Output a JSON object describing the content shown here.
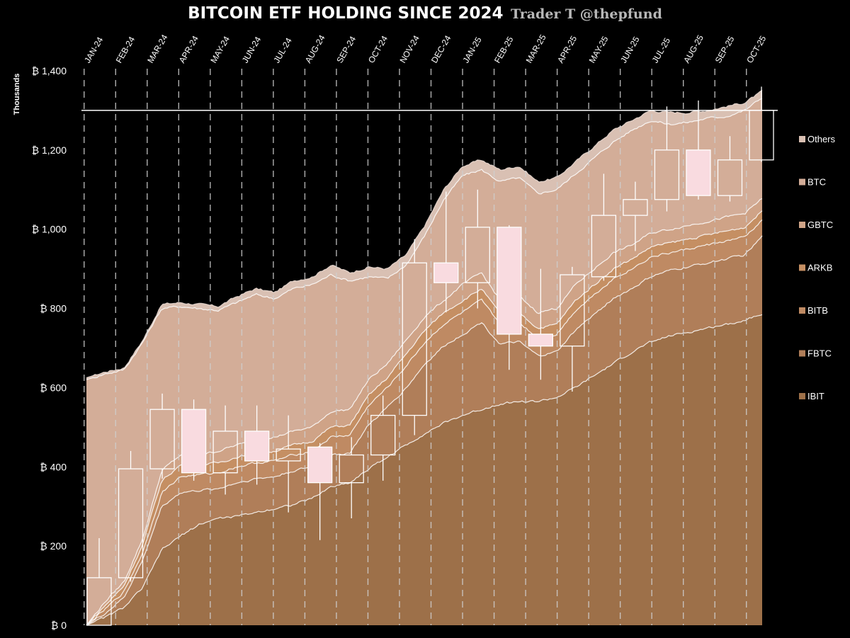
{
  "header": {
    "title": "BITCOIN ETF HOLDING SINCE 2024",
    "credit": "Trader T @thepfund"
  },
  "chart_data": {
    "type": "area",
    "stacked": true,
    "overlay": "candlestick",
    "unit_label": "Thousands",
    "currency_symbol": "₿",
    "ylim": [
      0,
      1400
    ],
    "y_ticks": [
      "₿ 0",
      "₿ 200",
      "₿ 400",
      "₿ 600",
      "₿ 800",
      "₿ 1,000",
      "₿ 1,200",
      "₿ 1,400"
    ],
    "y_tick_values": [
      0,
      200,
      400,
      600,
      800,
      1000,
      1200,
      1400
    ],
    "months": [
      "JAN-24",
      "FEB-24",
      "MAR-24",
      "APR-24",
      "MAY-24",
      "JUN-24",
      "JUL-24",
      "AUG-24",
      "SEP-24",
      "OCT-24",
      "NOV-24",
      "DEC-24",
      "JAN-25",
      "FEB-25",
      "MAR-25",
      "APR-25",
      "MAY-25",
      "JUN-25",
      "JUL-25",
      "AUG-25",
      "SEP-25",
      "OCT-25"
    ],
    "reference_line": 1300,
    "grid": "vertical dashed at month starts",
    "legend_position": "right",
    "series": [
      {
        "name": "Others",
        "color": "#d9c0b3",
        "cumulative": [
          625,
          640,
          650,
          720,
          810,
          815,
          810,
          805,
          830,
          850,
          840,
          870,
          880,
          910,
          890,
          905,
          900,
          935,
          1010,
          1100,
          1160,
          1175,
          1150,
          1160,
          1120,
          1130,
          1170,
          1210,
          1250,
          1275,
          1300,
          1295,
          1295,
          1300,
          1310,
          1320,
          1350
        ]
      },
      {
        "name": "BTC",
        "color": "#d3ad98",
        "cumulative": [
          620,
          635,
          645,
          715,
          800,
          805,
          800,
          795,
          815,
          835,
          825,
          850,
          860,
          885,
          870,
          880,
          875,
          910,
          985,
          1075,
          1135,
          1150,
          1120,
          1130,
          1090,
          1100,
          1140,
          1180,
          1220,
          1250,
          1275,
          1265,
          1270,
          1280,
          1285,
          1300,
          1335
        ]
      },
      {
        "name": "GBTC",
        "color": "#cfa387",
        "cumulative": [
          0,
          60,
          110,
          220,
          390,
          430,
          430,
          440,
          455,
          465,
          475,
          490,
          500,
          540,
          545,
          620,
          660,
          720,
          780,
          820,
          860,
          890,
          820,
          830,
          790,
          800,
          860,
          900,
          940,
          960,
          990,
          1000,
          1010,
          1020,
          1030,
          1040,
          1080
        ]
      },
      {
        "name": "ARKB",
        "color": "#c58f63",
        "cumulative": [
          0,
          50,
          100,
          205,
          365,
          405,
          405,
          410,
          425,
          435,
          440,
          455,
          465,
          500,
          505,
          580,
          625,
          685,
          745,
          790,
          820,
          850,
          785,
          790,
          750,
          760,
          820,
          860,
          900,
          925,
          955,
          965,
          975,
          985,
          995,
          1005,
          1050
        ]
      },
      {
        "name": "BITB",
        "color": "#bf8a63",
        "cumulative": [
          0,
          40,
          85,
          185,
          335,
          375,
          380,
          385,
          400,
          410,
          415,
          430,
          440,
          475,
          480,
          555,
          600,
          655,
          715,
          760,
          790,
          820,
          760,
          765,
          725,
          735,
          795,
          835,
          875,
          900,
          930,
          940,
          950,
          960,
          970,
          980,
          1025
        ]
      },
      {
        "name": "FBTC",
        "color": "#b07e59",
        "cumulative": [
          0,
          30,
          70,
          165,
          300,
          335,
          340,
          345,
          360,
          370,
          375,
          390,
          400,
          430,
          435,
          505,
          550,
          600,
          660,
          705,
          735,
          765,
          710,
          715,
          680,
          690,
          745,
          785,
          825,
          850,
          880,
          895,
          905,
          915,
          925,
          935,
          985
        ]
      },
      {
        "name": "IBIT",
        "color": "#9d7049",
        "cumulative": [
          0,
          20,
          45,
          95,
          190,
          225,
          255,
          270,
          275,
          285,
          295,
          305,
          320,
          350,
          360,
          395,
          425,
          455,
          485,
          510,
          530,
          545,
          560,
          565,
          565,
          575,
          600,
          630,
          660,
          690,
          715,
          730,
          740,
          750,
          760,
          770,
          790
        ]
      }
    ],
    "candles": [
      {
        "month": "JAN-24",
        "open": 0,
        "close": 120,
        "high": 220,
        "low": 0
      },
      {
        "month": "FEB-24",
        "open": 120,
        "close": 395,
        "high": 440,
        "low": 110
      },
      {
        "month": "MAR-24",
        "open": 395,
        "close": 545,
        "high": 585,
        "low": 370
      },
      {
        "month": "APR-24",
        "open": 545,
        "close": 385,
        "high": 570,
        "low": 365
      },
      {
        "month": "MAY-24",
        "open": 385,
        "close": 490,
        "high": 555,
        "low": 330
      },
      {
        "month": "JUN-24",
        "open": 490,
        "close": 415,
        "high": 555,
        "low": 355
      },
      {
        "month": "JUL-24",
        "open": 415,
        "close": 445,
        "high": 530,
        "low": 285
      },
      {
        "month": "AUG-24",
        "open": 450,
        "close": 360,
        "high": 460,
        "low": 215
      },
      {
        "month": "SEP-24",
        "open": 360,
        "close": 430,
        "high": 475,
        "low": 270
      },
      {
        "month": "OCT-24",
        "open": 430,
        "close": 530,
        "high": 580,
        "low": 365
      },
      {
        "month": "NOV-24",
        "open": 530,
        "close": 915,
        "high": 975,
        "low": 480
      },
      {
        "month": "DEC-24",
        "open": 915,
        "close": 865,
        "high": 1095,
        "low": 790
      },
      {
        "month": "JAN-25",
        "open": 865,
        "close": 1005,
        "high": 1100,
        "low": 800
      },
      {
        "month": "FEB-25",
        "open": 1005,
        "close": 735,
        "high": 1010,
        "low": 645
      },
      {
        "month": "MAR-25",
        "open": 735,
        "close": 705,
        "high": 900,
        "low": 620
      },
      {
        "month": "APR-25",
        "open": 705,
        "close": 885,
        "high": 905,
        "low": 590
      },
      {
        "month": "MAY-25",
        "open": 880,
        "close": 1035,
        "high": 1140,
        "low": 870
      },
      {
        "month": "JUN-25",
        "open": 1035,
        "close": 1075,
        "high": 1120,
        "low": 945
      },
      {
        "month": "JUL-25",
        "open": 1075,
        "close": 1200,
        "high": 1310,
        "low": 1045
      },
      {
        "month": "AUG-25",
        "open": 1200,
        "close": 1085,
        "high": 1325,
        "low": 1075
      },
      {
        "month": "SEP-25",
        "open": 1085,
        "close": 1175,
        "high": 1235,
        "low": 1070
      },
      {
        "month": "OCT-25",
        "open": 1175,
        "close": 1300,
        "high": 1360,
        "low": 1170
      }
    ],
    "up_candle_style": {
      "fill": "none",
      "stroke": "#ffffff"
    },
    "down_candle_style": {
      "fill": "#f9dbe0",
      "stroke": "#ffffff"
    }
  }
}
